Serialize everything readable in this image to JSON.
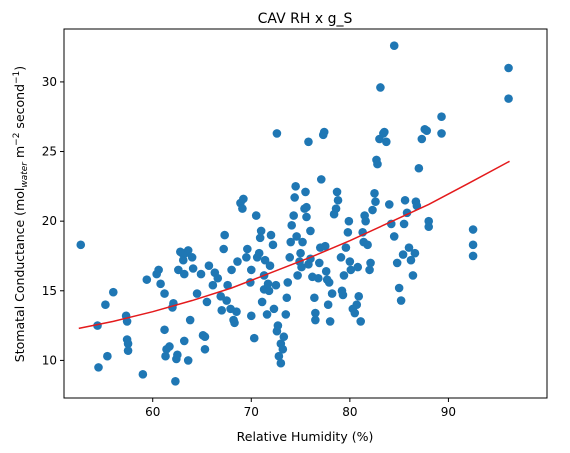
{
  "chart_data": {
    "type": "scatter",
    "title": "CAV RH x g_S",
    "xlabel": "Relative Humidity (%)",
    "ylabel": "Stomatal Conductance (mol_water m^-2 second^-1)",
    "ylabel_parts": {
      "main": "Stomatal Conductance (mol",
      "sub": "water",
      "m": " m",
      "sup1": "−2",
      "second": " second",
      "sup2": "−1",
      "close": ")"
    },
    "xlim": [
      51,
      100
    ],
    "ylim": [
      7.3,
      33.8
    ],
    "xticks": [
      60,
      70,
      80,
      90
    ],
    "yticks": [
      10,
      15,
      20,
      25,
      30
    ],
    "grid": false,
    "point_color": "#1f77b4",
    "line_color": "#e41a1c",
    "trend_line": {
      "x": [
        52.5,
        56,
        60,
        64,
        68,
        72,
        76,
        80,
        84,
        88,
        92,
        96.2
      ],
      "y": [
        12.3,
        12.8,
        13.5,
        14.3,
        15.2,
        16.3,
        17.4,
        18.6,
        19.9,
        21.2,
        22.7,
        24.3
      ]
    },
    "series": [
      {
        "points": [
          [
            52.7,
            18.3
          ],
          [
            54.4,
            12.5
          ],
          [
            54.5,
            9.5
          ],
          [
            55.2,
            14.0
          ],
          [
            55.4,
            10.3
          ],
          [
            56.0,
            14.9
          ],
          [
            57.3,
            13.2
          ],
          [
            57.4,
            12.8
          ],
          [
            57.4,
            11.5
          ],
          [
            57.5,
            10.7
          ],
          [
            57.5,
            11.2
          ],
          [
            59.0,
            9.0
          ],
          [
            59.4,
            15.8
          ],
          [
            60.4,
            16.2
          ],
          [
            60.6,
            16.5
          ],
          [
            60.8,
            15.5
          ],
          [
            61.2,
            14.8
          ],
          [
            61.2,
            12.2
          ],
          [
            61.3,
            10.3
          ],
          [
            61.4,
            10.8
          ],
          [
            61.7,
            11.0
          ],
          [
            62.0,
            13.8
          ],
          [
            62.1,
            14.1
          ],
          [
            62.3,
            8.5
          ],
          [
            62.4,
            10.1
          ],
          [
            62.5,
            10.4
          ],
          [
            62.6,
            16.5
          ],
          [
            62.8,
            17.8
          ],
          [
            63.0,
            17.7
          ],
          [
            63.1,
            17.2
          ],
          [
            63.2,
            11.4
          ],
          [
            63.2,
            16.2
          ],
          [
            63.3,
            17.7
          ],
          [
            63.6,
            17.9
          ],
          [
            63.6,
            10.0
          ],
          [
            63.8,
            12.9
          ],
          [
            64.0,
            17.4
          ],
          [
            64.1,
            16.6
          ],
          [
            64.5,
            14.8
          ],
          [
            64.9,
            16.2
          ],
          [
            65.1,
            11.8
          ],
          [
            65.3,
            10.8
          ],
          [
            65.3,
            11.7
          ],
          [
            65.5,
            14.2
          ],
          [
            65.7,
            16.8
          ],
          [
            66.1,
            15.4
          ],
          [
            66.3,
            16.3
          ],
          [
            66.6,
            15.9
          ],
          [
            66.9,
            14.6
          ],
          [
            67.0,
            13.6
          ],
          [
            67.2,
            18.0
          ],
          [
            67.3,
            19.0
          ],
          [
            67.5,
            14.3
          ],
          [
            67.6,
            15.4
          ],
          [
            67.9,
            13.7
          ],
          [
            68.0,
            16.5
          ],
          [
            68.2,
            12.9
          ],
          [
            68.3,
            12.7
          ],
          [
            68.5,
            13.5
          ],
          [
            68.6,
            17.1
          ],
          [
            68.9,
            21.3
          ],
          [
            69.1,
            20.9
          ],
          [
            69.2,
            21.6
          ],
          [
            69.5,
            17.4
          ],
          [
            69.6,
            18.0
          ],
          [
            69.9,
            15.6
          ],
          [
            70.0,
            16.5
          ],
          [
            70.0,
            13.2
          ],
          [
            70.3,
            11.6
          ],
          [
            70.5,
            20.4
          ],
          [
            70.6,
            17.4
          ],
          [
            70.8,
            17.7
          ],
          [
            70.9,
            18.8
          ],
          [
            71.0,
            19.3
          ],
          [
            71.1,
            14.2
          ],
          [
            71.3,
            15.1
          ],
          [
            71.3,
            16.1
          ],
          [
            71.4,
            17.2
          ],
          [
            71.6,
            13.3
          ],
          [
            71.7,
            15.5
          ],
          [
            71.8,
            15.0
          ],
          [
            71.9,
            16.8
          ],
          [
            72.0,
            19.0
          ],
          [
            72.2,
            18.3
          ],
          [
            72.3,
            13.7
          ],
          [
            72.5,
            15.4
          ],
          [
            72.6,
            12.1
          ],
          [
            72.7,
            12.5
          ],
          [
            72.8,
            10.3
          ],
          [
            73.0,
            9.8
          ],
          [
            73.0,
            11.2
          ],
          [
            73.2,
            10.8
          ],
          [
            73.3,
            11.7
          ],
          [
            73.5,
            13.3
          ],
          [
            73.6,
            14.5
          ],
          [
            73.7,
            15.6
          ],
          [
            73.9,
            17.4
          ],
          [
            74.0,
            18.5
          ],
          [
            74.1,
            19.7
          ],
          [
            74.3,
            20.4
          ],
          [
            74.4,
            21.7
          ],
          [
            74.5,
            22.5
          ],
          [
            74.6,
            18.9
          ],
          [
            74.7,
            16.1
          ],
          [
            74.9,
            17.1
          ],
          [
            75.0,
            17.7
          ],
          [
            75.1,
            16.7
          ],
          [
            75.2,
            18.5
          ],
          [
            75.4,
            20.9
          ],
          [
            75.5,
            22.1
          ],
          [
            75.6,
            20.3
          ],
          [
            75.6,
            21.0
          ],
          [
            75.8,
            16.9
          ],
          [
            76.0,
            19.3
          ],
          [
            76.0,
            17.3
          ],
          [
            76.2,
            16.0
          ],
          [
            76.4,
            14.5
          ],
          [
            76.5,
            13.4
          ],
          [
            76.5,
            12.9
          ],
          [
            76.8,
            15.9
          ],
          [
            76.9,
            17.0
          ],
          [
            77.0,
            18.1
          ],
          [
            77.1,
            23.0
          ],
          [
            77.3,
            26.2
          ],
          [
            77.5,
            18.2
          ],
          [
            77.6,
            16.4
          ],
          [
            77.7,
            15.8
          ],
          [
            77.8,
            14.0
          ],
          [
            77.9,
            15.6
          ],
          [
            78.0,
            12.8
          ],
          [
            78.2,
            14.8
          ],
          [
            78.4,
            20.5
          ],
          [
            78.6,
            20.9
          ],
          [
            78.7,
            22.1
          ],
          [
            78.8,
            21.5
          ],
          [
            79.1,
            17.4
          ],
          [
            79.2,
            15.0
          ],
          [
            79.3,
            14.7
          ],
          [
            79.4,
            16.1
          ],
          [
            79.6,
            18.1
          ],
          [
            79.8,
            19.2
          ],
          [
            79.9,
            20.0
          ],
          [
            80.0,
            17.1
          ],
          [
            80.1,
            16.5
          ],
          [
            80.3,
            13.7
          ],
          [
            80.5,
            13.4
          ],
          [
            80.7,
            14.0
          ],
          [
            80.8,
            16.7
          ],
          [
            80.9,
            14.6
          ],
          [
            81.1,
            12.8
          ],
          [
            81.3,
            19.2
          ],
          [
            81.4,
            18.5
          ],
          [
            81.5,
            20.4
          ],
          [
            81.6,
            20.0
          ],
          [
            81.8,
            18.3
          ],
          [
            82.0,
            16.5
          ],
          [
            82.1,
            17.0
          ],
          [
            82.3,
            20.8
          ],
          [
            82.5,
            22.0
          ],
          [
            82.6,
            21.4
          ],
          [
            82.7,
            24.4
          ],
          [
            82.8,
            24.1
          ],
          [
            83.0,
            25.9
          ],
          [
            83.1,
            29.6
          ],
          [
            83.4,
            26.3
          ],
          [
            83.5,
            26.4
          ],
          [
            83.7,
            25.7
          ],
          [
            84.0,
            21.2
          ],
          [
            84.2,
            19.8
          ],
          [
            84.5,
            18.9
          ],
          [
            84.8,
            17.0
          ],
          [
            85.0,
            15.2
          ],
          [
            85.2,
            14.3
          ],
          [
            85.4,
            17.6
          ],
          [
            85.5,
            19.8
          ],
          [
            85.6,
            21.5
          ],
          [
            85.8,
            20.6
          ],
          [
            86.0,
            18.1
          ],
          [
            86.2,
            17.2
          ],
          [
            86.4,
            16.1
          ],
          [
            86.6,
            17.7
          ],
          [
            86.7,
            21.4
          ],
          [
            86.8,
            21.1
          ],
          [
            87.0,
            23.8
          ],
          [
            87.3,
            25.9
          ],
          [
            87.6,
            26.6
          ],
          [
            87.8,
            26.5
          ],
          [
            88.0,
            20.0
          ],
          [
            88.0,
            19.6
          ],
          [
            89.3,
            27.5
          ],
          [
            89.3,
            26.3
          ],
          [
            92.5,
            19.4
          ],
          [
            92.5,
            18.3
          ],
          [
            92.5,
            17.5
          ],
          [
            96.1,
            31.0
          ],
          [
            96.1,
            28.8
          ],
          [
            84.5,
            32.6
          ],
          [
            75.8,
            25.7
          ],
          [
            72.6,
            26.3
          ],
          [
            77.4,
            26.4
          ]
        ]
      }
    ]
  }
}
